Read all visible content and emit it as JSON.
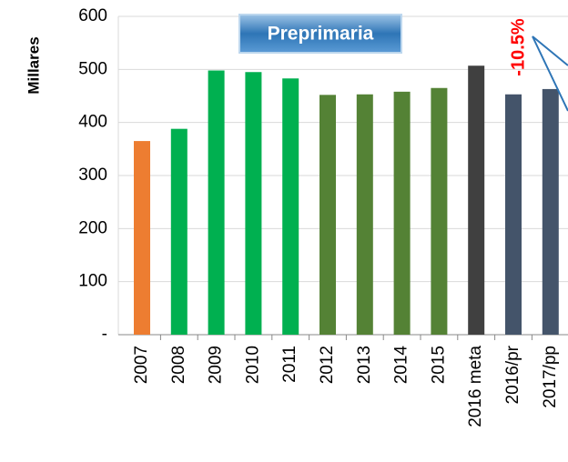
{
  "chart_data": {
    "type": "bar",
    "title": "Preprimaria",
    "y_label": "Millares",
    "annotation": "-10.5%",
    "categories": [
      "2007",
      "2008",
      "2009",
      "2010",
      "2011",
      "2012",
      "2013",
      "2014",
      "2015",
      "2016 meta",
      "2016/pr",
      "2017/pp"
    ],
    "values": [
      365,
      388,
      498,
      495,
      483,
      452,
      453,
      458,
      465,
      507,
      453,
      463
    ],
    "colors": [
      "#ed7d31",
      "#00b050",
      "#00b050",
      "#00b050",
      "#00b050",
      "#548235",
      "#548235",
      "#548235",
      "#548235",
      "#404040",
      "#44546a",
      "#44546a"
    ],
    "ylim": [
      0,
      600
    ],
    "yticks": [
      {
        "value": 0,
        "label": "-"
      },
      100,
      200,
      300,
      400,
      500,
      600
    ],
    "grid": true
  }
}
